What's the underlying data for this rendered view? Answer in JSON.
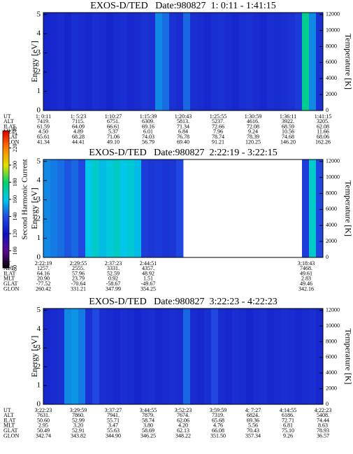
{
  "chart_data": [
    {
      "type": "heatmap",
      "title": "EXOS-D/TED   Date:980827  1: 0:11 - 1:41:15",
      "ylabel": "Energy [eV]",
      "y2label": "Temperature [K]",
      "ylim": [
        0,
        5.1
      ],
      "yticks": [
        0,
        1,
        2,
        3,
        4,
        5
      ],
      "y2lim": [
        0,
        12240
      ],
      "y2ticks": [
        0,
        2000,
        4000,
        6000,
        8000,
        10000,
        12000
      ],
      "values": [
        128,
        129,
        130,
        128,
        131,
        130,
        129,
        131,
        130,
        128,
        130,
        131,
        129,
        130,
        132,
        131,
        150,
        146,
        132,
        130,
        145,
        131,
        130,
        129,
        131,
        132,
        130,
        129,
        131,
        132,
        130,
        129,
        131,
        130,
        131,
        132,
        135,
        175,
        150,
        132
      ],
      "ephemeris": {
        "labels": [
          "UT",
          "ALT",
          "ILAT",
          "MLT",
          "GLAT",
          "GLON"
        ],
        "rows": [
          [
            "1: 0:11",
            "1: 5:23",
            "1:10:27",
            "1:15:39",
            "1:20:43",
            "1:25:55",
            "1:30:59",
            "1:36:11",
            "1:41:15"
          ],
          [
            "7419.",
            "7115.",
            "6751.",
            "6309.",
            "5813.",
            "5237.",
            "4616.",
            "3922.",
            "3205."
          ],
          [
            "61.59",
            "64.09",
            "66.61",
            "69.16",
            "71.34",
            "72.66",
            "72.08",
            "68.59",
            "62.08"
          ],
          [
            "4.50",
            "4.89",
            "5.37",
            "6.01",
            "6.84",
            "7.96",
            "9.24",
            "10.56",
            "11.66"
          ],
          [
            "65.61",
            "68.28",
            "71.06",
            "74.03",
            "76.78",
            "78.74",
            "78.39",
            "74.68",
            "68.06"
          ],
          [
            "41.34",
            "44.41",
            "49.10",
            "56.79",
            "69.40",
            "91.21",
            "120.25",
            "146.20",
            "162.26"
          ]
        ]
      }
    },
    {
      "type": "heatmap",
      "title": "EXOS-D/TED   Date:980827  2:22:19 - 3:22:15",
      "ylabel": "Energy [eV]",
      "y2label": "Temperature [K]",
      "ylim": [
        0,
        5.1
      ],
      "yticks": [
        0,
        1,
        2,
        3,
        4,
        5
      ],
      "y2lim": [
        0,
        12240
      ],
      "y2ticks": [
        0,
        2000,
        4000,
        6000,
        8000,
        10000,
        12000
      ],
      "values": [
        150,
        148,
        146,
        142,
        145,
        140,
        160,
        165,
        158,
        162,
        166,
        160,
        163,
        158,
        136,
        134,
        135,
        133,
        134,
        140,
        null,
        null,
        null,
        null,
        null,
        null,
        null,
        null,
        null,
        null,
        null,
        null,
        null,
        null,
        null,
        null,
        null,
        136,
        165,
        140
      ],
      "ephemeris": {
        "labels": [
          "UT",
          "ALT",
          "ILAT",
          "MLT",
          "GLAT",
          "GLON"
        ],
        "rows": [
          [
            "2:22:19",
            "2:29:55",
            "2:37:23",
            "2:44:51",
            "3:18:43"
          ],
          [
            "1257.",
            "2555.",
            "3331.",
            "4357.",
            "7468."
          ],
          [
            "64.16",
            "57.96",
            "52.59",
            "48.92",
            "49.61"
          ],
          [
            "20.90",
            "23.79",
            "0.92",
            "1.51",
            "2.83"
          ],
          [
            "-77.52",
            "-70.64",
            "-58.67",
            "-49.67",
            "49.46"
          ],
          [
            "260.42",
            "331.21",
            "347.99",
            "354.25",
            "342.16"
          ]
        ]
      },
      "colorbar": {
        "label": "Second Harmonic Current",
        "lim": [
          80,
          240
        ],
        "ticks": [
          80,
          100,
          120,
          140,
          160,
          180,
          200,
          220,
          240
        ]
      }
    },
    {
      "type": "heatmap",
      "title": "EXOS-D/TED   Date:980827  3:22:23 - 4:22:23",
      "ylabel": "Energy [eV]",
      "y2label": "Temperature [K]",
      "ylim": [
        0,
        5.1
      ],
      "yticks": [
        0,
        1,
        2,
        3,
        4,
        5
      ],
      "y2lim": [
        0,
        12240
      ],
      "y2ticks": [
        0,
        2000,
        4000,
        6000,
        8000,
        10000,
        12000
      ],
      "values": [
        129,
        130,
        131,
        150,
        152,
        148,
        132,
        140,
        131,
        130,
        129,
        131,
        130,
        128,
        130,
        131,
        129,
        130,
        131,
        130,
        145,
        130,
        129,
        131,
        140,
        130,
        129,
        131,
        130,
        128,
        130,
        131,
        129,
        130,
        131,
        130,
        129,
        130,
        131,
        129
      ],
      "ephemeris": {
        "labels": [
          "UT",
          "ALT",
          "ILAT",
          "MLT",
          "GLAT",
          "GLON"
        ],
        "rows": [
          [
            "3:22:23",
            "3:29:59",
            "3:37:27",
            "3:44:55",
            "3:52:23",
            "3:59:59",
            "4: 7:27",
            "4:14:55",
            "4:22:23"
          ],
          [
            "7631.",
            "7860.",
            "7941.",
            "7879.",
            "7674.",
            "7319.",
            "6824.",
            "6186.",
            "5408."
          ],
          [
            "50.60",
            "52.99",
            "55.71",
            "58.74",
            "62.06",
            "65.68",
            "69.36",
            "72.71",
            "74.44"
          ],
          [
            "2.95",
            "3.20",
            "3.47",
            "3.80",
            "4.20",
            "4.76",
            "5.56",
            "6.81",
            "8.63"
          ],
          [
            "50.49",
            "52.91",
            "55.63",
            "58.69",
            "62.13",
            "66.08",
            "70.43",
            "75.10",
            "78.93"
          ],
          [
            "342.74",
            "343.82",
            "344.90",
            "346.25",
            "348.22",
            "351.50",
            "357.34",
            "9.26",
            "36.57"
          ]
        ]
      }
    }
  ]
}
